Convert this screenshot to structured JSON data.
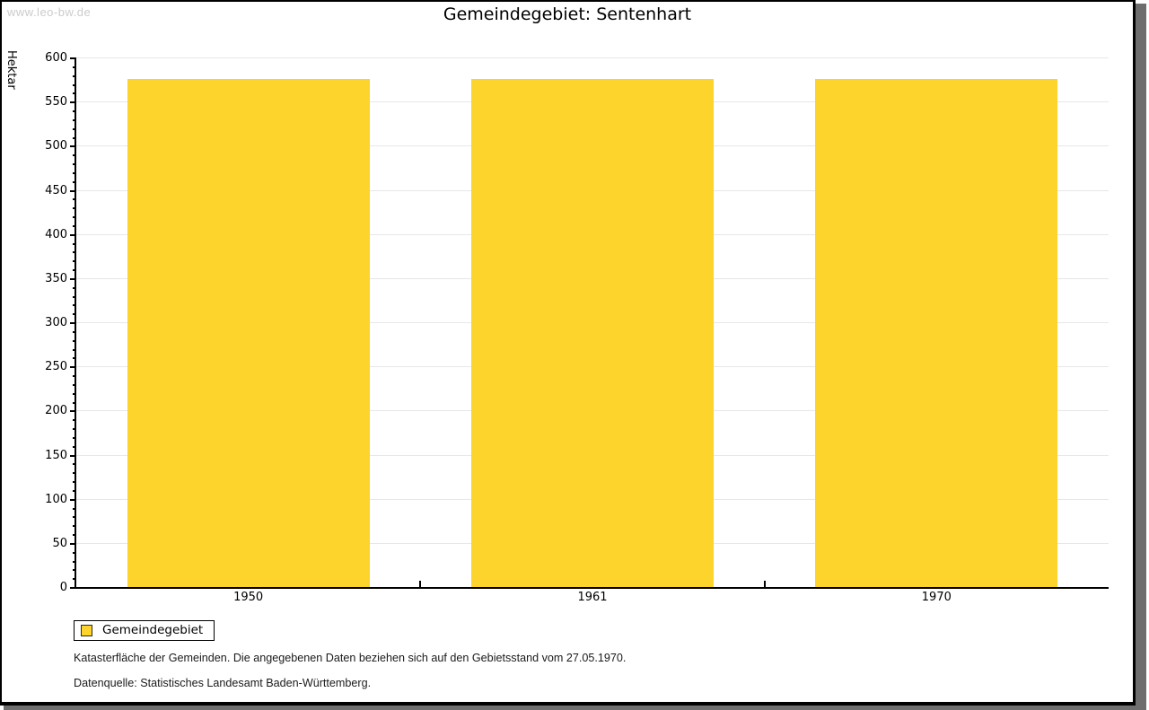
{
  "watermark": "www.leo-bw.de",
  "header": {
    "title": "Gemeindegebiet: Sentenhart"
  },
  "legend": {
    "label": "Gemeindegebiet",
    "swatch_color": "#FCD42C"
  },
  "notes": {
    "line1": "Katasterfläche der Gemeinden. Die angegebenen Daten beziehen sich auf den Gebietsstand vom 27.05.1970.",
    "line2": "Datenquelle: Statistisches Landesamt Baden-Württemberg."
  },
  "chart_data": {
    "type": "bar",
    "title": "Gemeindegebiet: Sentenhart",
    "categories": [
      "1950",
      "1961",
      "1970"
    ],
    "series": [
      {
        "name": "Gemeindegebiet",
        "values": [
          576,
          576,
          576
        ]
      }
    ],
    "xlabel": "",
    "ylabel": "Hektar",
    "ylim": [
      0,
      600
    ],
    "ytick_major": 50,
    "ytick_minor": 10,
    "grid": true,
    "legend_position": "bottom-left",
    "bar_color": "#FCD42C",
    "gridline_color": "#e7e7e7"
  }
}
